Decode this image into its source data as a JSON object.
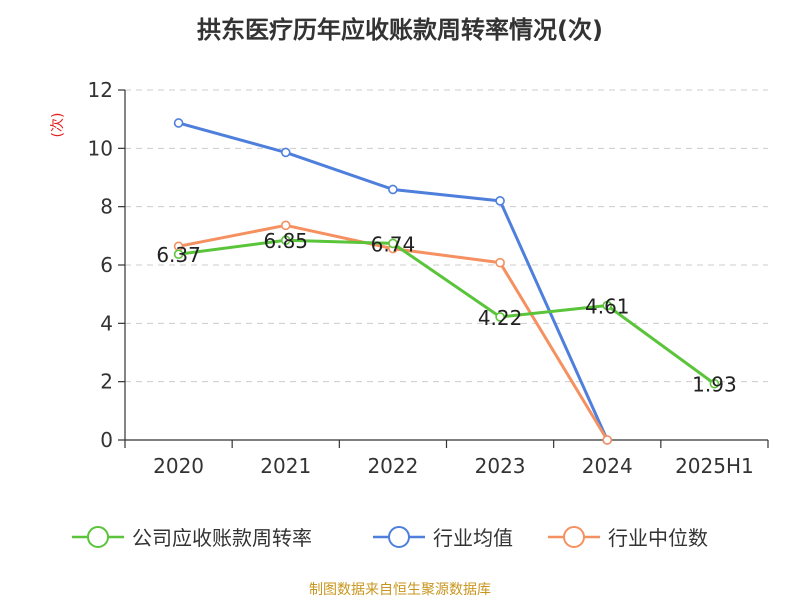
{
  "title": "拱东医疗历年应收账款周转率情况(次)",
  "source": "制图数据来自恒生聚源数据库",
  "chart_data": {
    "type": "line",
    "title": "拱东医疗历年应收账款周转率情况(次)",
    "ylabel": "(次)",
    "xlabel": "",
    "categories": [
      "2020",
      "2021",
      "2022",
      "2023",
      "2024",
      "2025H1"
    ],
    "ylim": [
      0,
      12
    ],
    "yticks": [
      0,
      2,
      4,
      6,
      8,
      10,
      12
    ],
    "grid": true,
    "legend_position": "bottom",
    "series": [
      {
        "name": "公司应收账款周转率",
        "color": "#5ac43a",
        "values": [
          6.37,
          6.85,
          6.74,
          4.22,
          4.61,
          1.93
        ],
        "labels": [
          "6.37",
          "6.85",
          "6.74",
          "4.22",
          "4.61",
          "1.93"
        ]
      },
      {
        "name": "行业均值",
        "color": "#4e7fdc",
        "values": [
          10.87,
          9.86,
          8.59,
          8.2,
          0,
          null
        ]
      },
      {
        "name": "行业中位数",
        "color": "#f59060",
        "values": [
          6.64,
          7.36,
          6.56,
          6.08,
          0,
          null
        ]
      }
    ]
  }
}
